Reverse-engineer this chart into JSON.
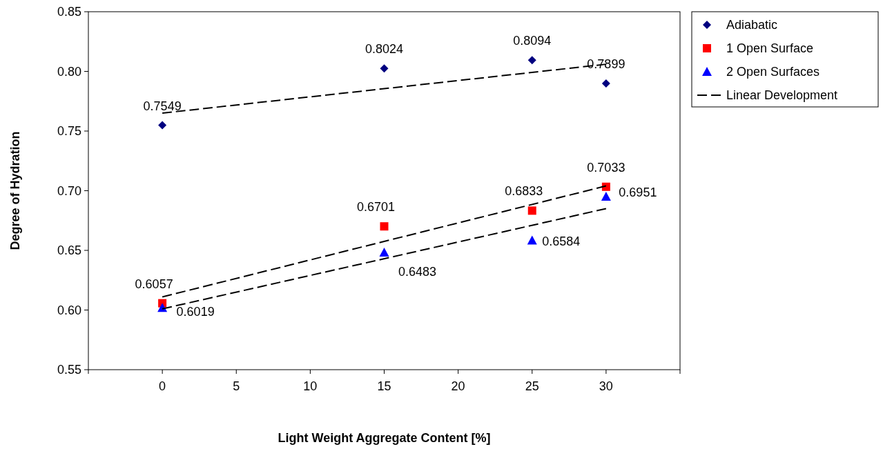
{
  "chart_data": {
    "type": "scatter",
    "xlabel": "Light Weight Aggregate Content [%]",
    "ylabel": "Degree of Hydration",
    "x": [
      0,
      15,
      25,
      30
    ],
    "xlim": [
      -5,
      35
    ],
    "xticks": [
      {
        "value": -5,
        "label": null
      },
      0,
      5,
      10,
      15,
      20,
      25,
      30,
      {
        "value": 35,
        "label": null
      }
    ],
    "ylim": [
      0.55,
      0.85
    ],
    "yticks": [
      {
        "value": 0.55,
        "label": "0.55"
      },
      {
        "value": 0.6,
        "label": "0.60"
      },
      {
        "value": 0.65,
        "label": "0.65"
      },
      {
        "value": 0.7,
        "label": "0.70"
      },
      {
        "value": 0.75,
        "label": "0.75"
      },
      {
        "value": 0.8,
        "label": "0.80"
      },
      {
        "value": 0.85,
        "label": "0.85"
      }
    ],
    "grid": false,
    "legend": "top right",
    "line_style": "dashed",
    "series": [
      {
        "name": "Adiabatic",
        "color": "#000080",
        "marker": "diamond",
        "values": [
          0.7549,
          0.8024,
          0.8094,
          0.7899
        ],
        "value_labels": [
          "0.7549",
          "0.8024",
          "0.8094",
          "0.7899"
        ]
      },
      {
        "name": "1 Open Surface",
        "color": "#ff0000",
        "marker": "square",
        "values": [
          0.6057,
          0.6701,
          0.6833,
          0.7033
        ],
        "value_labels": [
          "0.6057",
          "0.6701",
          "0.6833",
          "0.7033"
        ]
      },
      {
        "name": "2 Open Surfaces",
        "color": "#0000ff",
        "marker": "triangle",
        "values": [
          0.6019,
          0.6483,
          0.6584,
          0.6951
        ],
        "value_labels": [
          "0.6019",
          "0.6483",
          "0.6584",
          "0.6951"
        ]
      },
      {
        "name": "Linear Development",
        "type": "line",
        "color": "#000000",
        "values": [
          0.765,
          null,
          null,
          0.806
        ]
      },
      {
        "type": "line",
        "color": "#000000",
        "values": [
          0.611,
          null,
          null,
          0.704
        ]
      },
      {
        "type": "line",
        "color": "#000000",
        "values": [
          0.601,
          null,
          null,
          0.685
        ]
      }
    ]
  }
}
